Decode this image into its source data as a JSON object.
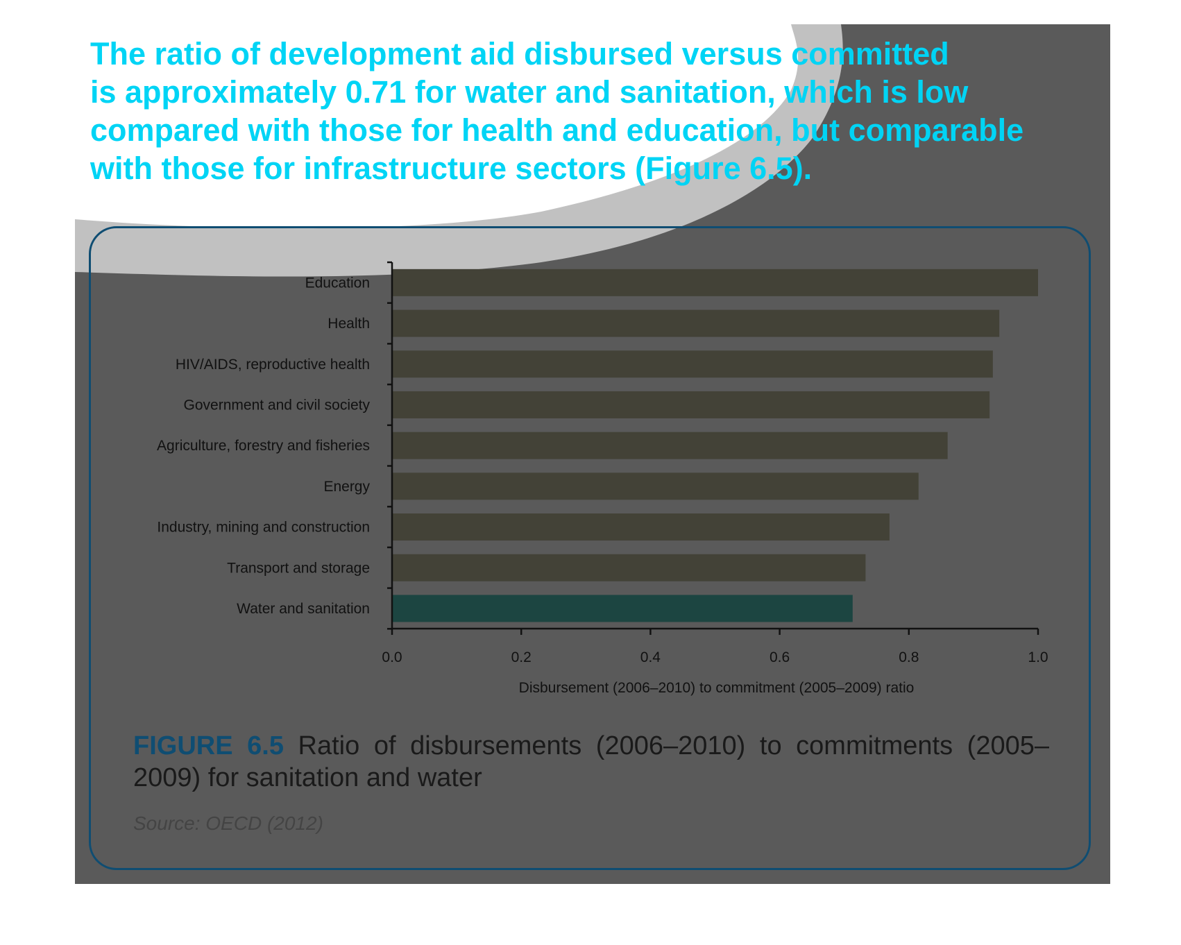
{
  "intro": {
    "lines": [
      "The ratio of development aid disbursed versus committed",
      "is approximately 0.71 for water and sanitation, which is low",
      "compared with those for health and education, but comparable",
      "with those for infrastructure sectors (Figure 6.5)."
    ]
  },
  "colors": {
    "intro_text": "#00d4f5",
    "bar_default": "#434237",
    "bar_highlight": "#1c4541",
    "figure_label": "#0f4d72",
    "panel": "#5a5a5a"
  },
  "chart_data": {
    "type": "bar",
    "orientation": "horizontal",
    "categories": [
      "Education",
      "Health",
      "HIV/AIDS, reproductive health",
      "Government and civil society",
      "Agriculture, forestry and fisheries",
      "Energy",
      "Industry, mining and construction",
      "Transport and storage",
      "Water and sanitation"
    ],
    "values": [
      1.0,
      0.94,
      0.93,
      0.925,
      0.86,
      0.815,
      0.77,
      0.733,
      0.713
    ],
    "highlight": "Water and sanitation",
    "xlabel": "Disbursement (2006–2010) to commitment (2005–2009) ratio",
    "ylabel": "",
    "xlim": [
      0,
      1.0
    ],
    "xticks": [
      "0.0",
      "0.2",
      "0.4",
      "0.6",
      "0.8",
      "1.0"
    ],
    "grid": false,
    "legend": "none"
  },
  "caption": {
    "figure_label": "FIGURE 6.5",
    "text": " Ratio of disbursements (2006–2010) to commitments (2005–2009) for sanitation and water"
  },
  "source": "Source: OECD (2012)"
}
